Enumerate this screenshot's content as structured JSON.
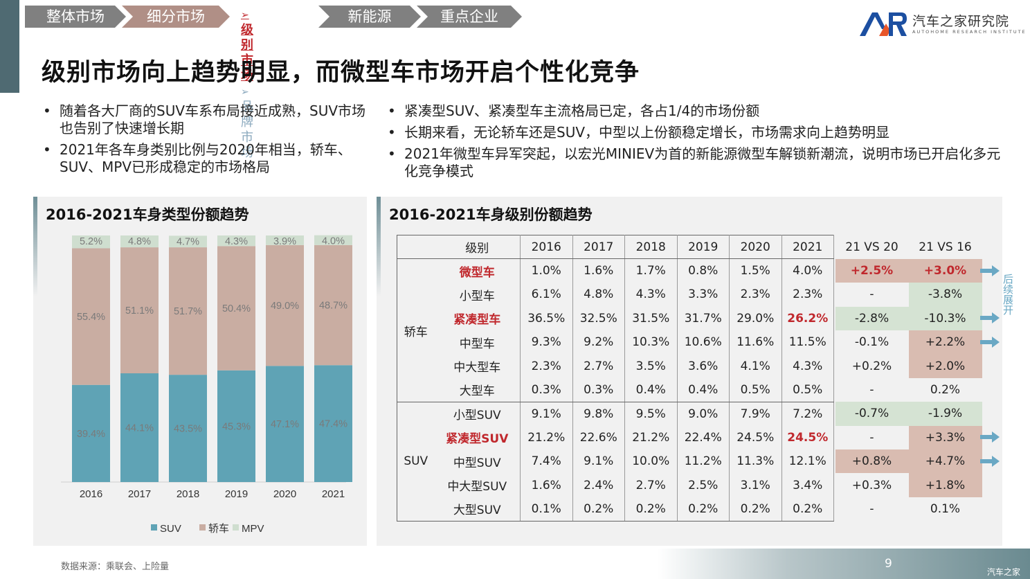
{
  "nav": {
    "items": [
      {
        "label": "整体市场",
        "color": "#808080"
      },
      {
        "label": "细分市场",
        "color": "#b08f86"
      },
      {
        "label": "新能源",
        "color": "#808080"
      },
      {
        "label": "重点企业",
        "color": "#808080"
      }
    ],
    "sub_active": "级别市场",
    "sub_inactive": "品牌市场"
  },
  "logo": {
    "text": "汽车之家研究院",
    "sub": "AUTOHOME RESEARCH INSTITUTE"
  },
  "headline": "级别市场向上趋势明显，而微型车市场开启个性化竞争",
  "bullets_left": [
    "随着各大厂商的SUV车系布局接近成熟，SUV市场也告别了快速增长期",
    "2021年各车身类别比例与2020年相当，轿车、SUV、MPV已形成稳定的市场格局"
  ],
  "bullets_right": [
    "紧凑型SUV、紧凑型车主流格局已定，各占1/4的市场份额",
    "长期来看，无论轿车还是SUV，中型以上份额稳定增长，市场需求向上趋势明显",
    "2021年微型车异军突起，以宏光MINIEV为首的新能源微型车解锁新潮流，说明市场已开启化多元化竞争模式"
  ],
  "left_panel_title": "2016-2021车身类型份额趋势",
  "right_panel_title": "2016-2021车身级别份额趋势",
  "chart_data": [
    {
      "type": "bar",
      "stacked": true,
      "title": "2016-2021车身类型份额趋势",
      "categories": [
        "2016",
        "2017",
        "2018",
        "2019",
        "2020",
        "2021"
      ],
      "series": [
        {
          "name": "SUV",
          "color": "#5fa3b5",
          "values": [
            39.4,
            44.1,
            43.5,
            45.3,
            47.1,
            47.4
          ],
          "labels": [
            "39.4%",
            "44.1%",
            "43.5%",
            "45.3%",
            "47.1%",
            "47.4%"
          ]
        },
        {
          "name": "轿车",
          "color": "#c9ada2",
          "values": [
            55.4,
            51.1,
            51.7,
            50.4,
            49.0,
            48.7
          ],
          "labels": [
            "55.4%",
            "51.1%",
            "51.7%",
            "50.4%",
            "49.0%",
            "48.7%"
          ]
        },
        {
          "name": "MPV",
          "color": "#cfdecf",
          "values": [
            5.2,
            4.8,
            4.7,
            4.3,
            3.9,
            4.0
          ],
          "labels": [
            "5.2%",
            "4.8%",
            "4.7%",
            "4.3%",
            "3.9%",
            "4.0%"
          ]
        }
      ],
      "ylim": [
        0,
        100
      ],
      "legend": "bottom",
      "xlabel": "",
      "ylabel": ""
    },
    {
      "type": "table",
      "title": "2016-2021车身级别份额趋势",
      "headers": [
        "级别",
        "2016",
        "2017",
        "2018",
        "2019",
        "2020",
        "2021",
        "21 VS 20",
        "21 VS 16"
      ],
      "groups": [
        {
          "name": "轿车",
          "rows": [
            {
              "level": "微型车",
              "highlight": true,
              "values": [
                "1.0%",
                "1.6%",
                "1.7%",
                "0.8%",
                "1.5%",
                "4.0%"
              ],
              "red2021": false,
              "vs20": "+2.5%",
              "vs16": "+3.0%",
              "vs20_bg": "#d9bcb1",
              "vs16_bg": "#d9bcb1",
              "red_cmp": true,
              "arrow": true
            },
            {
              "level": "小型车",
              "highlight": false,
              "values": [
                "6.1%",
                "4.8%",
                "4.3%",
                "3.3%",
                "2.3%",
                "2.3%"
              ],
              "red2021": false,
              "vs20": "-",
              "vs16": "-3.8%",
              "vs20_bg": "",
              "vs16_bg": "#d5e3d3",
              "red_cmp": false,
              "arrow": false
            },
            {
              "level": "紧凑型车",
              "highlight": true,
              "values": [
                "36.5%",
                "32.5%",
                "31.5%",
                "31.7%",
                "29.0%",
                "26.2%"
              ],
              "red2021": true,
              "vs20": "-2.8%",
              "vs16": "-10.3%",
              "vs20_bg": "#d5e3d3",
              "vs16_bg": "#d5e3d3",
              "red_cmp": false,
              "arrow": true
            },
            {
              "level": "中型车",
              "highlight": false,
              "values": [
                "9.3%",
                "9.2%",
                "10.3%",
                "10.6%",
                "11.6%",
                "11.5%"
              ],
              "red2021": false,
              "vs20": "-0.1%",
              "vs16": "+2.2%",
              "vs20_bg": "",
              "vs16_bg": "#d9bcb1",
              "red_cmp": false,
              "arrow": true
            },
            {
              "level": "中大型车",
              "highlight": false,
              "values": [
                "2.3%",
                "2.7%",
                "3.5%",
                "3.6%",
                "4.1%",
                "4.3%"
              ],
              "red2021": false,
              "vs20": "+0.2%",
              "vs16": "+2.0%",
              "vs20_bg": "",
              "vs16_bg": "#d9bcb1",
              "red_cmp": false,
              "arrow": false
            },
            {
              "level": "大型车",
              "highlight": false,
              "values": [
                "0.3%",
                "0.3%",
                "0.4%",
                "0.4%",
                "0.5%",
                "0.5%"
              ],
              "red2021": false,
              "vs20": "-",
              "vs16": "0.2%",
              "vs20_bg": "",
              "vs16_bg": "",
              "red_cmp": false,
              "arrow": false
            }
          ]
        },
        {
          "name": "SUV",
          "rows": [
            {
              "level": "小型SUV",
              "highlight": false,
              "values": [
                "9.1%",
                "9.8%",
                "9.5%",
                "9.0%",
                "7.9%",
                "7.2%"
              ],
              "red2021": false,
              "vs20": "-0.7%",
              "vs16": "-1.9%",
              "vs20_bg": "#d5e3d3",
              "vs16_bg": "#d5e3d3",
              "red_cmp": false,
              "arrow": false
            },
            {
              "level": "紧凑型SUV",
              "highlight": true,
              "values": [
                "21.2%",
                "22.6%",
                "21.2%",
                "22.4%",
                "24.5%",
                "24.5%"
              ],
              "red2021": true,
              "vs20": "-",
              "vs16": "+3.3%",
              "vs20_bg": "",
              "vs16_bg": "#d9bcb1",
              "red_cmp": false,
              "arrow": true
            },
            {
              "level": "中型SUV",
              "highlight": false,
              "values": [
                "7.4%",
                "9.1%",
                "10.0%",
                "11.2%",
                "11.3%",
                "12.1%"
              ],
              "red2021": false,
              "vs20": "+0.8%",
              "vs16": "+4.7%",
              "vs20_bg": "#d9bcb1",
              "vs16_bg": "#d9bcb1",
              "red_cmp": false,
              "arrow": true
            },
            {
              "level": "中大型SUV",
              "highlight": false,
              "values": [
                "1.6%",
                "2.4%",
                "2.7%",
                "2.5%",
                "3.1%",
                "3.4%"
              ],
              "red2021": false,
              "vs20": "+0.3%",
              "vs16": "+1.8%",
              "vs20_bg": "",
              "vs16_bg": "#d9bcb1",
              "red_cmp": false,
              "arrow": false
            },
            {
              "level": "大型SUV",
              "highlight": false,
              "values": [
                "0.1%",
                "0.2%",
                "0.2%",
                "0.2%",
                "0.2%",
                "0.2%"
              ],
              "red2021": false,
              "vs20": "-",
              "vs16": "0.1%",
              "vs20_bg": "",
              "vs16_bg": "",
              "red_cmp": false,
              "arrow": false
            }
          ]
        }
      ]
    }
  ],
  "side_note": "后续展开",
  "footer": {
    "source": "数据来源：乘联会、上险量",
    "page": "9",
    "watermark": "汽车之家"
  },
  "colors": {
    "accent_red": "#c0282d",
    "arrow_blue": "#6aa8c4",
    "panel_bg": "#f1f1f1"
  }
}
